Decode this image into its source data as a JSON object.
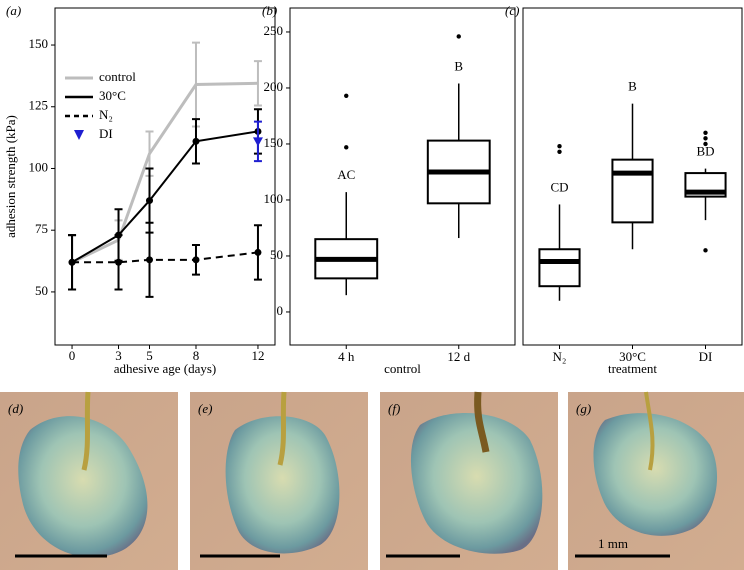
{
  "chart_data": [
    {
      "type": "line",
      "panel": "(a)",
      "xlabel": "adhesive age (days)",
      "ylabel": "adhesion strength (kPa)",
      "x": [
        0,
        3,
        5,
        8,
        12
      ],
      "xlim": [
        -1.1,
        13.1
      ],
      "xticks": [
        0,
        3,
        5,
        8,
        12
      ],
      "ylim": [
        28.5,
        165
      ],
      "yticks": [
        50,
        75,
        100,
        125,
        150
      ],
      "legend": "upper left",
      "series": [
        {
          "name": "control",
          "color": "#bdbdbd",
          "linestyle": "solid",
          "marker": "none",
          "values": [
            62,
            71,
            106,
            134,
            134.5
          ],
          "errors": [
            11,
            8,
            9,
            17,
            9
          ]
        },
        {
          "name": "30°C",
          "color": "#000000",
          "linestyle": "solid",
          "marker": "circle",
          "values": [
            62,
            73,
            87,
            111,
            115
          ],
          "errors": [
            11,
            10.5,
            13,
            9,
            9
          ]
        },
        {
          "name": "N₂",
          "color": "#000000",
          "linestyle": "dashed",
          "marker": "circle",
          "values": [
            62,
            62,
            63,
            63,
            66
          ],
          "errors": [
            11,
            11,
            15,
            6,
            11
          ]
        },
        {
          "name": "DI",
          "color": "#1f1fd0",
          "linestyle": "none",
          "marker": "triangle",
          "x": [
            12
          ],
          "values": [
            111
          ],
          "errors": [
            8
          ]
        }
      ]
    },
    {
      "type": "box",
      "panel": "(b)",
      "xlabel": "control",
      "categories": [
        "4 h",
        "12 d"
      ],
      "ylim": [
        -29.5,
        271.4
      ],
      "yticks": [
        0,
        50,
        100,
        150,
        200,
        250
      ],
      "boxes": [
        {
          "whislo": 15,
          "q1": 30,
          "med": 47,
          "q3": 65,
          "whishi": 107,
          "fliers": [
            147,
            193
          ]
        },
        {
          "whislo": 66,
          "q1": 97,
          "med": 125,
          "q3": 153,
          "whishi": 204,
          "fliers": [
            246
          ]
        }
      ],
      "annotations": [
        "AC",
        "B"
      ]
    },
    {
      "type": "box",
      "panel": "(c)",
      "xlabel": "treatment",
      "categories": [
        "N₂",
        "30°C",
        "DI"
      ],
      "ylim": [
        -29.5,
        271.4
      ],
      "boxes": [
        {
          "whislo": 10,
          "q1": 23,
          "med": 45,
          "q3": 56,
          "whishi": 96,
          "fliers": [
            143,
            148
          ]
        },
        {
          "whislo": 56,
          "q1": 80,
          "med": 124,
          "q3": 136,
          "whishi": 186,
          "fliers": []
        },
        {
          "whislo": 82,
          "q1": 103,
          "med": 107,
          "q3": 124,
          "whishi": 128,
          "fliers": [
            55,
            150,
            155,
            160
          ]
        }
      ],
      "annotations": [
        "CD",
        "B",
        "BD"
      ]
    }
  ],
  "photos": {
    "labels": [
      "(d)",
      "(e)",
      "(f)",
      "(g)"
    ],
    "scale_label": "1 mm"
  }
}
